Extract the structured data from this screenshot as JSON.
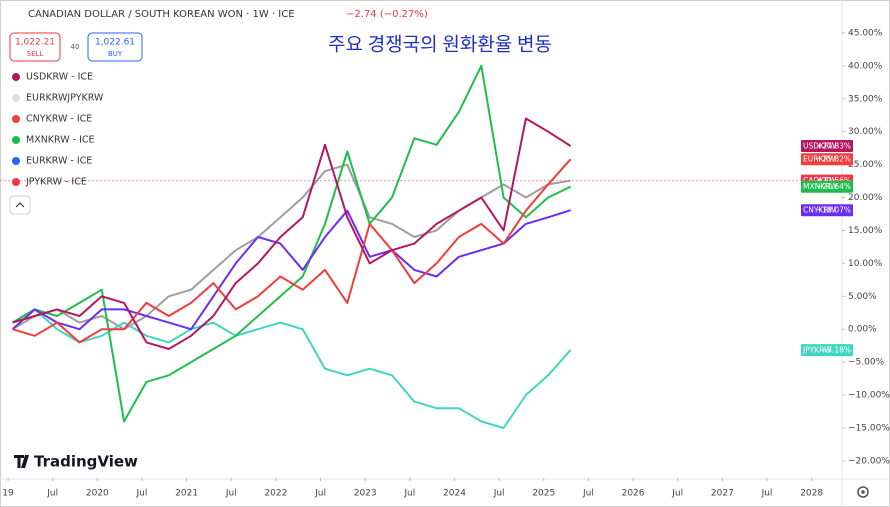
{
  "chart_data": {
    "type": "line",
    "title": "CANADIAN DOLLAR / SOUTH KOREAN WON · 1W · ICE",
    "change": "−2.74 (−0.27%)",
    "sell": "1,022.21",
    "sell_label": "SELL",
    "spread": "40",
    "buy": "1,022.61",
    "buy_label": "BUY",
    "subtitle": "주요 경쟁국의 원화환율 변동",
    "logo": "TradingView",
    "legend": [
      {
        "text": "USDKRW - ICE",
        "color": "#b5175f"
      },
      {
        "text": "EURKRWJPYKRW",
        "color": "#dddddd"
      },
      {
        "text": "CNYKRW - ICE",
        "color": "#e8443a"
      },
      {
        "text": "MXNKRW - ICE",
        "color": "#1dbf4a"
      },
      {
        "text": "EURKRW - ICE",
        "color": "#2962ff"
      },
      {
        "text": "JPYKRW - ICE",
        "color": "#f23645"
      }
    ],
    "x": [
      2019.05,
      2019.3,
      2019.55,
      2019.8,
      2020.05,
      2020.3,
      2020.55,
      2020.8,
      2021.05,
      2021.3,
      2021.55,
      2021.8,
      2022.05,
      2022.3,
      2022.55,
      2022.8,
      2023.05,
      2023.3,
      2023.55,
      2023.8,
      2024.05,
      2024.3,
      2024.55,
      2024.8,
      2025.05,
      2025.3
    ],
    "xlim": [
      2018.91,
      2028.34
    ],
    "xticks": [
      {
        "value": 2019,
        "label": "19"
      },
      {
        "value": 2019.5,
        "label": "Jul"
      },
      2020,
      {
        "value": 2020.5,
        "label": "Jul"
      },
      2021,
      {
        "value": 2021.5,
        "label": "Jul"
      },
      2022,
      {
        "value": 2022.5,
        "label": "Jul"
      },
      2023,
      {
        "value": 2023.5,
        "label": "Jul"
      },
      2024,
      {
        "value": 2024.5,
        "label": "Jul"
      },
      2025,
      {
        "value": 2025.5,
        "label": "Jul"
      },
      2026,
      {
        "value": 2026.5,
        "label": "Jul"
      },
      2027,
      {
        "value": 2027.5,
        "label": "Jul"
      },
      2028
    ],
    "ylim": [
      -22.6,
      50
    ],
    "yticks": [
      {
        "value": 45,
        "label": "45.00%"
      },
      {
        "value": 40,
        "label": "40.00%"
      },
      {
        "value": 35,
        "label": "35.00%"
      },
      {
        "value": 30,
        "label": "30.00%"
      },
      {
        "value": 25,
        "label": "25.00%"
      },
      {
        "value": 20,
        "label": "20.00%"
      },
      {
        "value": 15,
        "label": "15.00%"
      },
      {
        "value": 10,
        "label": "10.00%"
      },
      {
        "value": 5,
        "label": "5.00%"
      },
      {
        "value": 0,
        "label": "0.00%"
      },
      {
        "value": -5,
        "label": "−5.00%"
      },
      {
        "value": -10,
        "label": "−10.00%"
      },
      {
        "value": -15,
        "label": "−15.00%"
      },
      {
        "value": -20,
        "label": "−20.00%"
      }
    ],
    "grid": false,
    "series": [
      {
        "name": "CADKRW",
        "color": "#9e9e9e",
        "tag_color": "#f23645",
        "values": [
          0,
          2,
          3,
          1,
          2,
          0,
          2,
          5,
          6,
          9,
          12,
          14,
          17,
          20,
          24,
          25,
          17,
          16,
          14,
          15,
          18,
          20,
          22,
          20,
          22,
          22.56
        ],
        "value_labels": [
          null,
          null,
          null,
          null,
          null,
          null,
          null,
          null,
          null,
          null,
          null,
          null,
          null,
          null,
          null,
          null,
          null,
          null,
          null,
          null,
          null,
          null,
          null,
          null,
          null,
          "+22.56%"
        ]
      },
      {
        "name": "JPYKRW",
        "color": "#3fd6c0",
        "values": [
          1,
          3,
          0,
          -2,
          -1,
          1,
          -1,
          -2,
          0,
          1,
          -1,
          0,
          1,
          0,
          -6,
          -7,
          -6,
          -7,
          -11,
          -12,
          -12,
          -14,
          -15,
          -10,
          -7,
          -3.18
        ],
        "value_labels": [
          null,
          null,
          null,
          null,
          null,
          null,
          null,
          null,
          null,
          null,
          null,
          null,
          null,
          null,
          null,
          null,
          null,
          null,
          null,
          null,
          null,
          null,
          null,
          null,
          null,
          "−3.18%"
        ]
      },
      {
        "name": "MXNKRW",
        "color": "#1dbf4a",
        "values": [
          1,
          3,
          2,
          4,
          6,
          -14,
          -8,
          -7,
          -5,
          -3,
          -1,
          2,
          5,
          8,
          16,
          27,
          16,
          20,
          29,
          28,
          33,
          40,
          20,
          17,
          20,
          21.64
        ],
        "value_labels": [
          null,
          null,
          null,
          null,
          null,
          null,
          null,
          null,
          null,
          null,
          null,
          null,
          null,
          null,
          null,
          null,
          null,
          null,
          null,
          null,
          null,
          null,
          null,
          null,
          null,
          "+21.64%"
        ]
      },
      {
        "name": "CNYKRW",
        "color": "#6b2cf5",
        "values": [
          0,
          3,
          1,
          0,
          3,
          3,
          2,
          1,
          0,
          5,
          10,
          14,
          13,
          9,
          14,
          18,
          11,
          12,
          9,
          8,
          11,
          12,
          13,
          16,
          17,
          18.07
        ],
        "value_labels": [
          null,
          null,
          null,
          null,
          null,
          null,
          null,
          null,
          null,
          null,
          null,
          null,
          null,
          null,
          null,
          null,
          null,
          null,
          null,
          null,
          null,
          null,
          null,
          null,
          null,
          "+18.07%"
        ]
      },
      {
        "name": "EURKRW",
        "color": "#f23c3c",
        "values": [
          0,
          -1,
          1,
          -2,
          0,
          0,
          4,
          2,
          4,
          7,
          3,
          5,
          8,
          6,
          9,
          4,
          16,
          12,
          7,
          10,
          14,
          16,
          13,
          18,
          22,
          25.82
        ],
        "value_labels": [
          null,
          null,
          null,
          null,
          null,
          null,
          null,
          null,
          null,
          null,
          null,
          null,
          null,
          null,
          null,
          null,
          null,
          null,
          null,
          null,
          null,
          null,
          null,
          null,
          null,
          "+25.82%"
        ]
      },
      {
        "name": "USDKRW",
        "color": "#b5175f",
        "values": [
          1,
          2,
          3,
          2,
          5,
          4,
          -2,
          -3,
          -1,
          2,
          7,
          10,
          14,
          17,
          28,
          17,
          10,
          12,
          13,
          16,
          18,
          20,
          15,
          32,
          30,
          27.83
        ],
        "value_labels": [
          null,
          null,
          null,
          null,
          null,
          null,
          null,
          null,
          null,
          null,
          null,
          null,
          null,
          null,
          null,
          null,
          null,
          null,
          null,
          null,
          null,
          null,
          null,
          null,
          null,
          "+27.83%"
        ]
      }
    ]
  }
}
